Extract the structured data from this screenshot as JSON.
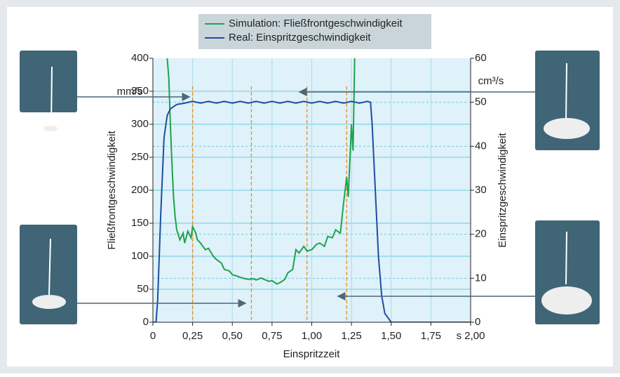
{
  "chart_data": {
    "type": "line",
    "units_left": "mm/s",
    "units_right": "cm³/s",
    "y_label": "Fließfrontgeschwindigkeit",
    "y2_label": "Einspritzgeschwindigkeit",
    "x_label": "Einspritzzeit",
    "xlim": [
      0,
      2.0
    ],
    "xticks": [
      0,
      {
        "value": 0.25,
        "label": "0,25"
      },
      {
        "value": 0.5,
        "label": "0,50"
      },
      {
        "value": 0.75,
        "label": "0,75"
      },
      {
        "value": 1.0,
        "label": "1,00"
      },
      {
        "value": 1.25,
        "label": "1,25"
      },
      {
        "value": 1.5,
        "label": "1,50"
      },
      {
        "value": 1.75,
        "label": "1,75"
      },
      {
        "value": 2.0,
        "label": "s 2,00"
      }
    ],
    "ylim": [
      0,
      400
    ],
    "yticks": [
      0,
      50,
      100,
      150,
      200,
      250,
      300,
      350,
      400
    ],
    "y2lim": [
      0,
      60
    ],
    "y2ticks": [
      0,
      10,
      20,
      30,
      40,
      50,
      60
    ],
    "grid": true,
    "markers": [
      0.25,
      0.62,
      0.97,
      1.22
    ],
    "series": [
      {
        "name": "Simulation: Fließfrontgeschwindigkeit",
        "color": "#1ea34c",
        "x": [
          0.09,
          0.1,
          0.11,
          0.12,
          0.13,
          0.14,
          0.15,
          0.17,
          0.19,
          0.2,
          0.22,
          0.24,
          0.25,
          0.27,
          0.28,
          0.3,
          0.33,
          0.35,
          0.38,
          0.4,
          0.43,
          0.45,
          0.48,
          0.5,
          0.53,
          0.55,
          0.58,
          0.6,
          0.63,
          0.65,
          0.68,
          0.7,
          0.73,
          0.75,
          0.78,
          0.8,
          0.83,
          0.85,
          0.88,
          0.9,
          0.92,
          0.95,
          0.97,
          1.0,
          1.03,
          1.05,
          1.08,
          1.1,
          1.13,
          1.15,
          1.18,
          1.2,
          1.22,
          1.23,
          1.25,
          1.26,
          1.27
        ],
        "values": [
          400,
          370,
          300,
          240,
          190,
          160,
          140,
          125,
          135,
          120,
          138,
          128,
          145,
          135,
          125,
          120,
          110,
          112,
          100,
          95,
          90,
          80,
          78,
          72,
          70,
          68,
          66,
          65,
          66,
          64,
          67,
          65,
          62,
          63,
          58,
          60,
          65,
          75,
          80,
          110,
          105,
          115,
          108,
          110,
          118,
          120,
          115,
          130,
          128,
          140,
          135,
          180,
          220,
          190,
          300,
          260,
          400
        ]
      },
      {
        "name": "Real: Einspritzgeschwindigkeit",
        "color": "#1f4e9e",
        "axis": "y2",
        "x": [
          0,
          0.02,
          0.03,
          0.05,
          0.07,
          0.09,
          0.11,
          0.15,
          0.2,
          0.25,
          0.3,
          0.35,
          0.4,
          0.45,
          0.5,
          0.55,
          0.6,
          0.65,
          0.7,
          0.75,
          0.8,
          0.85,
          0.9,
          0.95,
          1.0,
          1.05,
          1.1,
          1.15,
          1.2,
          1.25,
          1.3,
          1.35,
          1.37,
          1.38,
          1.4,
          1.42,
          1.44,
          1.46,
          1.5,
          2.0
        ],
        "values": [
          0,
          0,
          5,
          25,
          42,
          47,
          48.5,
          49.5,
          49.8,
          50.2,
          49.8,
          50.2,
          49.8,
          50.2,
          49.8,
          50.2,
          49.8,
          50.2,
          49.8,
          50.2,
          49.8,
          50.2,
          49.8,
          50.2,
          49.8,
          50.2,
          49.8,
          50.2,
          49.8,
          50.2,
          49.8,
          50.2,
          50,
          45,
          30,
          15,
          6,
          2,
          0,
          0
        ]
      }
    ]
  }
}
